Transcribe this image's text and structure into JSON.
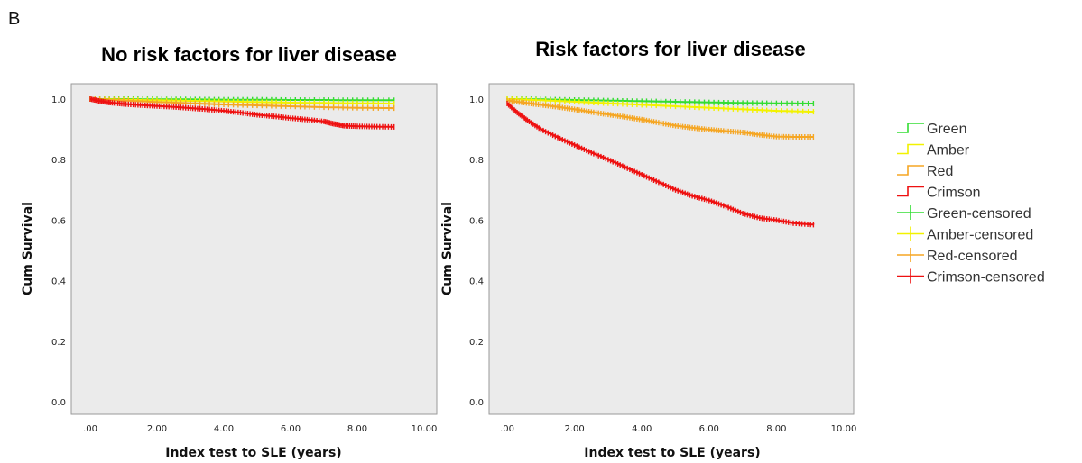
{
  "panel_label": "B",
  "legend": {
    "entries": [
      {
        "label": "Green",
        "color": "#33dd33",
        "kind": "step"
      },
      {
        "label": "Amber",
        "color": "#f2f200",
        "kind": "step"
      },
      {
        "label": "Red",
        "color": "#f5a623",
        "kind": "step"
      },
      {
        "label": "Crimson",
        "color": "#ee1111",
        "kind": "step"
      },
      {
        "label": "Green-censored",
        "color": "#33dd33",
        "kind": "cross"
      },
      {
        "label": "Amber-censored",
        "color": "#f2f200",
        "kind": "cross"
      },
      {
        "label": "Red-censored",
        "color": "#f5a623",
        "kind": "cross"
      },
      {
        "label": "Crimson-censored",
        "color": "#ee1111",
        "kind": "cross"
      }
    ]
  },
  "chart_data": [
    {
      "type": "line",
      "title": "No risk factors for liver disease",
      "xlabel": "Index test to SLE (years)",
      "ylabel": "Cum Survival",
      "xlim": [
        0,
        10
      ],
      "ylim": [
        0,
        1
      ],
      "xticks": [
        ".00",
        "2.00",
        "4.00",
        "6.00",
        "8.00",
        "10.00"
      ],
      "yticks": [
        "0.0",
        "0.2",
        "0.4",
        "0.6",
        "0.8",
        "1.0"
      ],
      "background": "#ebebeb",
      "series": [
        {
          "name": "Green",
          "color": "#33dd33",
          "x": [
            0,
            1,
            2,
            3,
            4,
            5,
            6,
            7,
            8,
            9.1
          ],
          "y": [
            1.0,
            1.0,
            0.999,
            0.999,
            0.998,
            0.998,
            0.997,
            0.997,
            0.996,
            0.996
          ]
        },
        {
          "name": "Amber",
          "color": "#f2f200",
          "x": [
            0,
            1,
            2,
            3,
            4,
            5,
            6,
            7,
            8,
            9.1
          ],
          "y": [
            1.0,
            0.998,
            0.996,
            0.994,
            0.992,
            0.99,
            0.988,
            0.987,
            0.986,
            0.985
          ]
        },
        {
          "name": "Red",
          "color": "#f5a623",
          "x": [
            0,
            1,
            2,
            3,
            4,
            5,
            6,
            7,
            8,
            9.1
          ],
          "y": [
            1.0,
            0.995,
            0.99,
            0.986,
            0.982,
            0.979,
            0.976,
            0.973,
            0.971,
            0.97
          ]
        },
        {
          "name": "Crimson",
          "color": "#ee1111",
          "x": [
            0,
            0.3,
            0.6,
            1,
            1.5,
            2,
            2.5,
            3,
            3.5,
            4,
            4.5,
            5,
            5.5,
            6,
            6.5,
            7,
            7.3,
            7.6,
            8,
            8.5,
            9.1
          ],
          "y": [
            1.0,
            0.993,
            0.988,
            0.984,
            0.98,
            0.977,
            0.974,
            0.97,
            0.966,
            0.961,
            0.955,
            0.948,
            0.943,
            0.937,
            0.932,
            0.926,
            0.918,
            0.912,
            0.91,
            0.909,
            0.908
          ]
        }
      ]
    },
    {
      "type": "line",
      "title": "Risk factors for liver disease",
      "xlabel": "Index test to SLE (years)",
      "ylabel": "Cum Survival",
      "xlim": [
        0,
        10
      ],
      "ylim": [
        0,
        1
      ],
      "xticks": [
        ".00",
        "2.00",
        "4.00",
        "6.00",
        "8.00",
        "10.00"
      ],
      "yticks": [
        "0.0",
        "0.2",
        "0.4",
        "0.6",
        "0.8",
        "1.0"
      ],
      "background": "#ebebeb",
      "series": [
        {
          "name": "Green",
          "color": "#33dd33",
          "x": [
            0,
            1,
            2,
            3,
            4,
            5,
            6,
            7,
            8,
            9.1
          ],
          "y": [
            1.0,
            0.999,
            0.997,
            0.995,
            0.993,
            0.991,
            0.989,
            0.987,
            0.986,
            0.985
          ]
        },
        {
          "name": "Amber",
          "color": "#f2f200",
          "x": [
            0,
            1,
            2,
            3,
            4,
            5,
            6,
            7,
            8,
            9.1
          ],
          "y": [
            1.0,
            0.996,
            0.991,
            0.986,
            0.981,
            0.976,
            0.971,
            0.966,
            0.961,
            0.958
          ]
        },
        {
          "name": "Red",
          "color": "#f5a623",
          "x": [
            0,
            0.5,
            1,
            1.5,
            2,
            2.5,
            3,
            3.5,
            4,
            4.5,
            5,
            5.5,
            6,
            6.5,
            7,
            7.5,
            8,
            8.5,
            9.1
          ],
          "y": [
            0.995,
            0.988,
            0.981,
            0.974,
            0.966,
            0.957,
            0.949,
            0.941,
            0.932,
            0.922,
            0.912,
            0.905,
            0.899,
            0.894,
            0.89,
            0.882,
            0.876,
            0.875,
            0.875
          ]
        },
        {
          "name": "Crimson",
          "color": "#ee1111",
          "x": [
            0,
            0.3,
            0.6,
            1,
            1.5,
            2,
            2.5,
            3,
            3.5,
            4,
            4.5,
            5,
            5.5,
            6,
            6.5,
            7,
            7.5,
            8,
            8.5,
            9.1
          ],
          "y": [
            0.985,
            0.955,
            0.93,
            0.9,
            0.873,
            0.848,
            0.823,
            0.8,
            0.775,
            0.75,
            0.725,
            0.7,
            0.68,
            0.665,
            0.645,
            0.622,
            0.607,
            0.6,
            0.59,
            0.585
          ]
        }
      ]
    }
  ]
}
